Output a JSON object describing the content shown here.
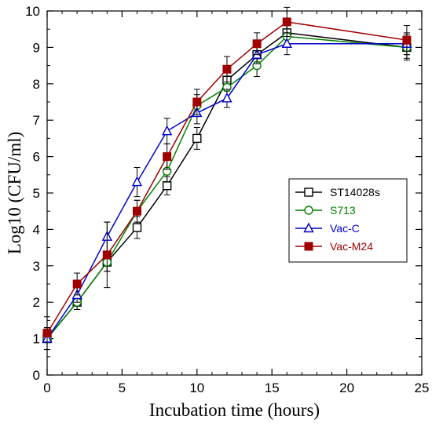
{
  "chart_data": {
    "type": "line",
    "title": "",
    "xlabel": "Incubation time (hours)",
    "ylabel": "Log10 (CFU/ml)",
    "xlim": [
      0,
      25
    ],
    "ylim": [
      0,
      10
    ],
    "xticks": [
      0,
      5,
      10,
      15,
      20,
      25
    ],
    "yticks": [
      0,
      1,
      2,
      3,
      4,
      5,
      6,
      7,
      8,
      9,
      10
    ],
    "grid": false,
    "legend_position": "right",
    "series": [
      {
        "name": "ST14028s",
        "color": "#000000",
        "marker": "open-square",
        "x": [
          0,
          2,
          4,
          6,
          8,
          10,
          12,
          14,
          16,
          24
        ],
        "y": [
          1.0,
          2.0,
          3.1,
          4.05,
          5.2,
          6.5,
          8.1,
          8.8,
          9.4,
          9.0
        ],
        "err": [
          0.3,
          0.2,
          0.25,
          0.3,
          0.25,
          0.3,
          0.3,
          0.2,
          0.3,
          0.35
        ]
      },
      {
        "name": "S713",
        "color": "#008000",
        "marker": "open-circle",
        "x": [
          0,
          2,
          4,
          6,
          8,
          10,
          12,
          14,
          16,
          24
        ],
        "y": [
          1.0,
          2.0,
          3.1,
          4.5,
          5.6,
          7.4,
          7.9,
          8.5,
          9.3,
          9.0
        ],
        "err": [
          0.3,
          0.2,
          0.25,
          0.3,
          0.3,
          0.3,
          0.3,
          0.3,
          0.3,
          0.3
        ]
      },
      {
        "name": "Vac-C",
        "color": "#0000cc",
        "marker": "open-triangle",
        "x": [
          0,
          2,
          4,
          6,
          8,
          10,
          12,
          14,
          16,
          24
        ],
        "y": [
          1.0,
          2.2,
          3.8,
          5.3,
          6.7,
          7.2,
          7.6,
          8.8,
          9.1,
          9.1
        ],
        "err": [
          0.3,
          0.2,
          0.4,
          0.4,
          0.35,
          0.3,
          0.25,
          0.25,
          0.3,
          0.3
        ]
      },
      {
        "name": "Vac-M24",
        "color": "#a00000",
        "marker": "filled-square",
        "x": [
          0,
          2,
          4,
          6,
          8,
          10,
          12,
          14,
          16,
          24
        ],
        "y": [
          1.15,
          2.5,
          3.3,
          4.5,
          6.0,
          7.5,
          8.4,
          9.1,
          9.7,
          9.2
        ],
        "err": [
          0.45,
          0.3,
          0.9,
          0.3,
          0.35,
          0.35,
          0.35,
          0.3,
          0.4,
          0.4
        ]
      }
    ]
  }
}
